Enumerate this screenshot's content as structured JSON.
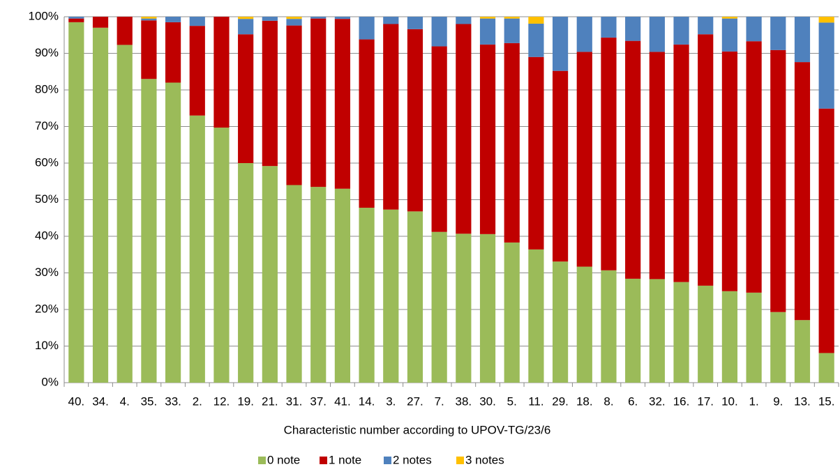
{
  "chart_data": {
    "type": "stacked_bar_100",
    "x_label": "Characteristic number according to UPOV-TG/23/6",
    "categories": [
      "40.",
      "34.",
      "4.",
      "35.",
      "33.",
      "2.",
      "12.",
      "19.",
      "21.",
      "31.",
      "37.",
      "41.",
      "14.",
      "3.",
      "27.",
      "7.",
      "38.",
      "30.",
      "5.",
      "11.",
      "29.",
      "18.",
      "8.",
      "6.",
      "32.",
      "16.",
      "17.",
      "10.",
      "1.",
      "9.",
      "13.",
      "15."
    ],
    "series": [
      {
        "name": "0 note",
        "color": "#9bbb59",
        "values": [
          98.5,
          97,
          92.3,
          83,
          82,
          73,
          69.7,
          60,
          59.2,
          54,
          53.5,
          53,
          47.8,
          47.3,
          46.8,
          41.2,
          40.7,
          40.6,
          38.3,
          36.4,
          33.1,
          31.7,
          30.7,
          28.4,
          28.3,
          27.5,
          26.5,
          25,
          24.6,
          19.3,
          17.1,
          8.1
        ]
      },
      {
        "name": "1 note",
        "color": "#c00000",
        "values": [
          1,
          3,
          7.7,
          16,
          16.5,
          24.5,
          30.3,
          35.2,
          39.7,
          43.6,
          46,
          46.4,
          46,
          50.7,
          49.8,
          50.7,
          57.3,
          51.8,
          54.5,
          52.6,
          52.1,
          58.7,
          63.6,
          65,
          62.1,
          64.9,
          68.7,
          65.5,
          68.7,
          71.6,
          70.5,
          66.8
        ]
      },
      {
        "name": "2 notes",
        "color": "#4f81bd",
        "values": [
          0.5,
          0,
          0,
          0.5,
          1.5,
          2.5,
          0,
          4.2,
          1.1,
          1.8,
          0.5,
          0.6,
          6.2,
          2,
          3.4,
          8.1,
          2,
          7.1,
          6.7,
          9.1,
          14.8,
          9.6,
          5.7,
          6.6,
          9.6,
          7.6,
          4.8,
          9,
          6.7,
          9.1,
          12.4,
          23.5
        ]
      },
      {
        "name": "3 notes",
        "color": "#ffc000",
        "values": [
          0,
          0,
          0,
          0.5,
          0,
          0,
          0,
          0.6,
          0,
          0.6,
          0,
          0,
          0,
          0,
          0,
          0,
          0,
          0.5,
          0.5,
          1.9,
          0,
          0,
          0,
          0,
          0,
          0,
          0,
          0.5,
          0,
          0,
          0,
          1.6
        ]
      }
    ],
    "ylim": [
      0,
      100
    ],
    "yticks": [
      {
        "value": 0,
        "label": "0%"
      },
      {
        "value": 10,
        "label": "10%"
      },
      {
        "value": 20,
        "label": "20%"
      },
      {
        "value": 30,
        "label": "30%"
      },
      {
        "value": 40,
        "label": "40%"
      },
      {
        "value": 50,
        "label": "50%"
      },
      {
        "value": 60,
        "label": "60%"
      },
      {
        "value": 70,
        "label": "70%"
      },
      {
        "value": 80,
        "label": "80%"
      },
      {
        "value": 90,
        "label": "90%"
      },
      {
        "value": 100,
        "label": "100%"
      }
    ],
    "grid": true,
    "legend": "bottom"
  }
}
